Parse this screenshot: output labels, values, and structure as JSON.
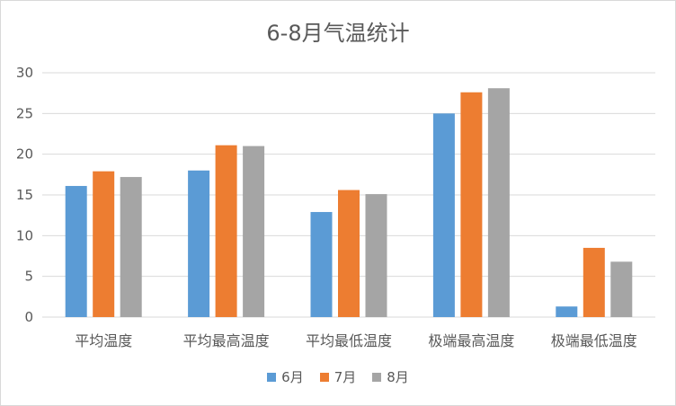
{
  "chart_data": {
    "type": "bar",
    "title": "6-8月气温统计",
    "categories": [
      "平均温度",
      "平均最高温度",
      "平均最低温度",
      "极端最高温度",
      "极端最低温度"
    ],
    "series": [
      {
        "name": "6月",
        "values": [
          16.1,
          18.0,
          12.9,
          25.0,
          1.3
        ],
        "color": "#5b9bd5"
      },
      {
        "name": "7月",
        "values": [
          17.9,
          21.1,
          15.6,
          27.6,
          8.5
        ],
        "color": "#ed7d31"
      },
      {
        "name": "8月",
        "values": [
          17.2,
          21.0,
          15.1,
          28.1,
          6.8
        ],
        "color": "#a5a5a5"
      }
    ],
    "ylim": [
      0,
      30
    ],
    "yticks": [
      "0",
      "5",
      "10",
      "15",
      "20",
      "25",
      "30"
    ],
    "grid": true,
    "legend_position": "bottom"
  }
}
